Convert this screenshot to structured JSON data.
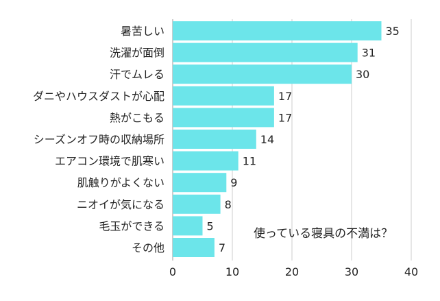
{
  "chart_data": {
    "type": "bar",
    "orientation": "horizontal",
    "annotation": "使っている寝具の不満は？",
    "categories": [
      "暑苦しい",
      "洗濯が面倒",
      "汗でムレる",
      "ダニやハウスダストが心配",
      "熱がこもる",
      "シーズンオフ時の収納場所",
      "エアコン環境で肌寒い",
      "肌触りがよくない",
      "ニオイが気になる",
      "毛玉ができる",
      "その他"
    ],
    "values": [
      35,
      31,
      30,
      17,
      17,
      14,
      11,
      9,
      8,
      5,
      7
    ],
    "xlim": [
      0,
      40
    ],
    "xticks": [
      "0",
      "10",
      "20",
      "30",
      "40"
    ],
    "grid": true,
    "bar_color": "#6ce5ea",
    "grid_color": "#cccccc"
  }
}
